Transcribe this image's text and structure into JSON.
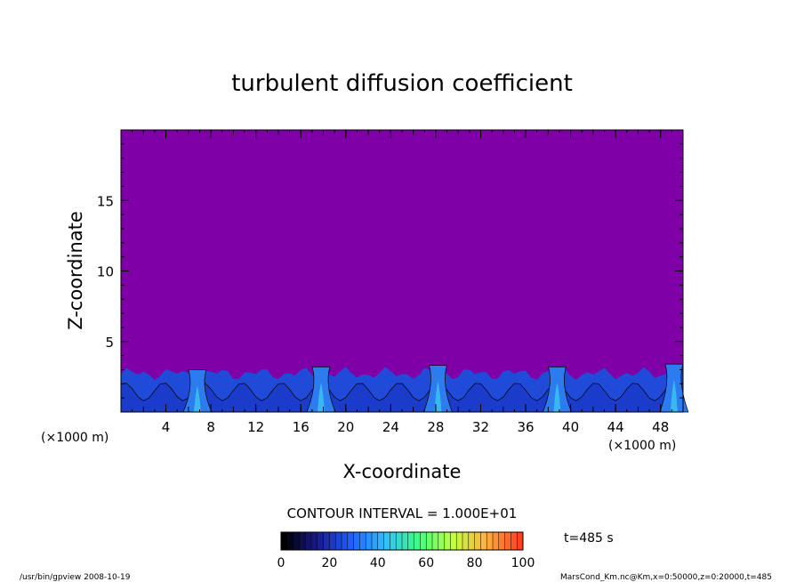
{
  "chart_data": {
    "type": "heatmap",
    "title": "turbulent diffusion coefficient",
    "xlabel": "X-coordinate",
    "ylabel": "Z-coordinate",
    "x_unit_left": "(×1000 m)",
    "x_unit_right": "(×1000 m)",
    "xlim": [
      0,
      50
    ],
    "ylim": [
      0,
      20
    ],
    "x_ticks": [
      4,
      8,
      12,
      16,
      20,
      24,
      28,
      32,
      36,
      40,
      44,
      48
    ],
    "y_ticks": [
      5,
      10,
      15
    ],
    "background_color": "#8000a8",
    "near_surface_layer_top": 3.2,
    "plumes": [
      {
        "x": 6.8,
        "top": 3.0
      },
      {
        "x": 17.8,
        "top": 3.2
      },
      {
        "x": 28.2,
        "top": 3.3
      },
      {
        "x": 38.8,
        "top": 3.2
      },
      {
        "x": 49.2,
        "top": 3.4
      }
    ],
    "contour_interval_label": "CONTOUR INTERVAL = 1.000E+01",
    "colorbar": {
      "min": 0,
      "max": 100,
      "ticks": [
        0,
        20,
        40,
        60,
        80,
        100
      ],
      "colors": [
        "#000000",
        "#1a1a90",
        "#2060ff",
        "#30c0ff",
        "#40ff80",
        "#c0ff40",
        "#ffb040",
        "#ff4020"
      ]
    },
    "time_label": "t=485  s"
  },
  "footer": {
    "left": "/usr/bin/gpview   2008-10-19",
    "right": "MarsCond_Km.nc@Km,x=0:50000,z=0:20000,t=485"
  }
}
